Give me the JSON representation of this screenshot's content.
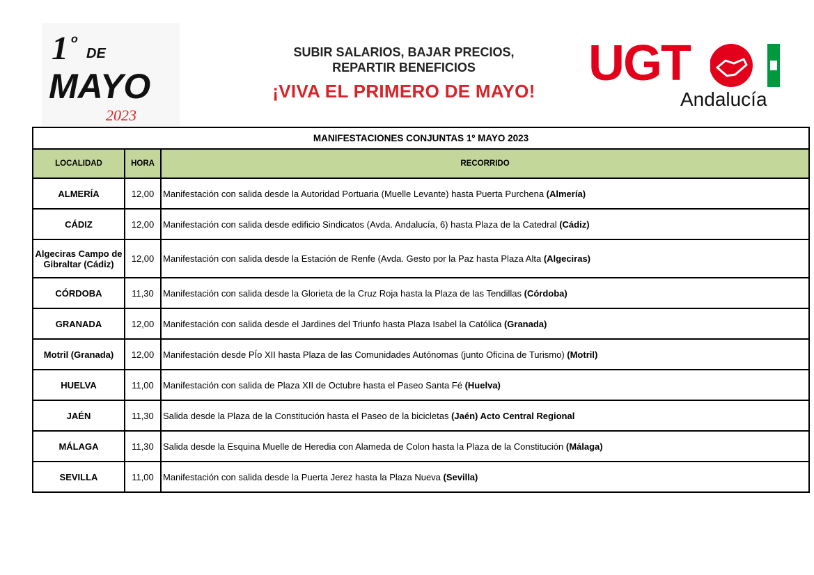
{
  "header": {
    "logo_left": {
      "text": "1º DE MAYO",
      "year": "2023"
    },
    "slogan_line1": "SUBIR SALARIOS, BAJAR PRECIOS,",
    "slogan_line2": "REPARTIR BENEFICIOS",
    "slogan_main": "¡VIVA EL PRIMERO DE MAYO!",
    "logo_right": {
      "text": "UGT",
      "sub": "Andalucía"
    },
    "colors": {
      "red": "#e3001b",
      "green": "#009a3e",
      "header_bg": "#c4d79b"
    }
  },
  "table": {
    "title": "MANIFESTACIONES CONJUNTAS 1º MAYO 2023",
    "columns": [
      "LOCALIDAD",
      "HORA",
      "RECORRIDO"
    ],
    "rows": [
      {
        "localidad": "ALMERÍA",
        "hora": "12,00",
        "recorrido": "Manifestación con salida desde la Autoridad Portuaria (Muelle Levante) hasta Puerta Purchena ",
        "bold": "(Almería)"
      },
      {
        "localidad": "CÁDIZ",
        "hora": "12,00",
        "recorrido": "Manifestación con salida desde edificio Sindicatos (Avda. Andalucía, 6) hasta Plaza de la Catedral ",
        "bold": "(Cádiz)"
      },
      {
        "localidad": "Algeciras Campo de Gibraltar (Cádiz)",
        "hora": "12,00",
        "recorrido": "Manifestación con salida desde la Estación de Renfe (Avda. Gesto por la Paz hasta Plaza Alta ",
        "bold": "(Algeciras)"
      },
      {
        "localidad": "CÓRDOBA",
        "hora": "11,30",
        "recorrido": "Manifestación con salida desde la Glorieta de la Cruz Roja hasta la Plaza de las Tendillas ",
        "bold": "(Córdoba)"
      },
      {
        "localidad": "GRANADA",
        "hora": "12,00",
        "recorrido": "Manifestación con salida desde el Jardines del Triunfo hasta Plaza Isabel la Católica ",
        "bold": "(Granada)"
      },
      {
        "localidad": "Motril (Granada)",
        "hora": "12,00",
        "recorrido": "Manifestación desde PÍo XII hasta Plaza de las Comunidades Autónomas (junto Oficina de Turismo) ",
        "bold": "(Motril)"
      },
      {
        "localidad": "HUELVA",
        "hora": "11,00",
        "recorrido": "Manifestación con salida de Plaza XII de Octubre hasta el Paseo Santa Fé ",
        "bold": "(Huelva)"
      },
      {
        "localidad": "JAÉN",
        "hora": "11,30",
        "recorrido": "Salida desde la Plaza de la Constitución hasta el Paseo de la bicicletas ",
        "bold": "(Jaén) Acto Central Regional"
      },
      {
        "localidad": "MÁLAGA",
        "hora": "11,30",
        "recorrido": "Salida desde la Esquina Muelle de Heredia con Alameda de Colon hasta la Plaza de la Constitución ",
        "bold": "(Málaga)"
      },
      {
        "localidad": "SEVILLA",
        "hora": "11,00",
        "recorrido": "Manifestación con salida desde la Puerta Jerez hasta la Plaza Nueva ",
        "bold": "(Sevilla)"
      }
    ]
  }
}
